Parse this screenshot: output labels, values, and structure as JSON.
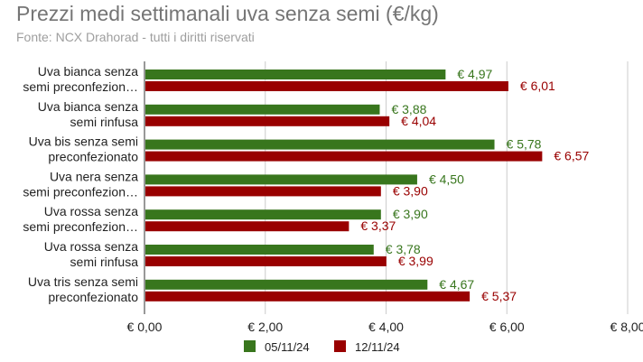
{
  "chart_data": {
    "type": "bar",
    "orientation": "horizontal",
    "title": "Prezzi medi settimanali uva senza semi (€/kg)",
    "subtitle": "Fonte: NCX Drahorad - tutti i diritti riservati",
    "categories": [
      [
        "Uva bianca senza",
        "semi preconfezion…"
      ],
      [
        "Uva bianca senza",
        "semi rinfusa"
      ],
      [
        "Uva bis senza semi",
        "preconfezionato"
      ],
      [
        "Uva nera senza",
        "semi preconfezion…"
      ],
      [
        "Uva rossa senza",
        "semi preconfezion…"
      ],
      [
        "Uva rossa senza",
        "semi rinfusa"
      ],
      [
        "Uva tris senza semi",
        "preconfezionato"
      ]
    ],
    "series": [
      {
        "name": "05/11/24",
        "color": "#38761d",
        "values": [
          4.97,
          3.88,
          5.78,
          4.5,
          3.9,
          3.78,
          4.67
        ],
        "labels": [
          "€ 4,97",
          "€ 3,88",
          "€ 5,78",
          "€ 4,50",
          "€ 3,90",
          "€ 3,78",
          "€ 4,67"
        ]
      },
      {
        "name": "12/11/24",
        "color": "#990000",
        "values": [
          6.01,
          4.04,
          6.57,
          3.9,
          3.37,
          3.99,
          5.37
        ],
        "labels": [
          "€ 6,01",
          "€ 4,04",
          "€ 6,57",
          "€ 3,90",
          "€ 3,37",
          "€ 3,99",
          "€ 5,37"
        ]
      }
    ],
    "xlim": [
      0,
      8
    ],
    "xticks": [
      0,
      2,
      4,
      6,
      8
    ],
    "xtick_labels": [
      "€ 0,00",
      "€ 2,00",
      "€ 4,00",
      "€ 6,00",
      "€ 8,00"
    ],
    "grid": true,
    "legend_position": "bottom"
  }
}
